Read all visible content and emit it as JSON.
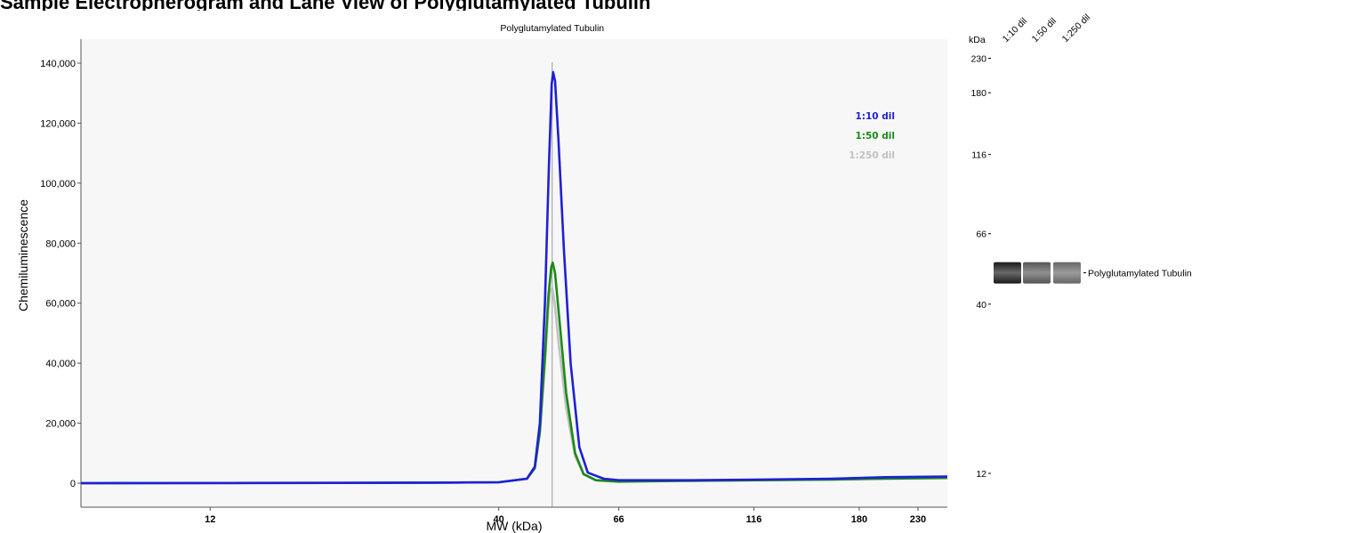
{
  "chart_data": {
    "type": "line",
    "title": "",
    "xlabel": "MW (kDa)",
    "ylabel": "Chemiluminescence",
    "peak_annotation": "Polyglutamylated Tubulin",
    "peak_kda": 50,
    "x_scale": "log",
    "x_range_kda": [
      7,
      260
    ],
    "ylim": [
      -8000,
      148000
    ],
    "x_ticks": [
      {
        "label": "12",
        "value": 12
      },
      {
        "label": "40",
        "value": 40
      },
      {
        "label": "66",
        "value": 66
      },
      {
        "label": "116",
        "value": 116
      },
      {
        "label": "180",
        "value": 180
      },
      {
        "label": "230",
        "value": 230
      }
    ],
    "y_ticks": [
      {
        "label": "0",
        "value": 0
      },
      {
        "label": "20,000",
        "value": 20000
      },
      {
        "label": "40,000",
        "value": 40000
      },
      {
        "label": "60,000",
        "value": 60000
      },
      {
        "label": "80,000",
        "value": 80000
      },
      {
        "label": "100,000",
        "value": 100000
      },
      {
        "label": "120,000",
        "value": 120000
      },
      {
        "label": "140,000",
        "value": 140000
      }
    ],
    "legend_position": "top-right",
    "series": [
      {
        "name": "1:250 dil",
        "color": "#c0c0c0",
        "points": [
          [
            7,
            0
          ],
          [
            20,
            100
          ],
          [
            30,
            200
          ],
          [
            40,
            300
          ],
          [
            45,
            1500
          ],
          [
            46.5,
            5000
          ],
          [
            47.5,
            17000
          ],
          [
            48.5,
            40000
          ],
          [
            49.2,
            58000
          ],
          [
            49.6,
            64000
          ],
          [
            50,
            65000
          ],
          [
            50.5,
            60000
          ],
          [
            51.5,
            45000
          ],
          [
            53,
            25000
          ],
          [
            55,
            9000
          ],
          [
            57,
            3000
          ],
          [
            60,
            1000
          ],
          [
            66,
            600
          ],
          [
            90,
            800
          ],
          [
            116,
            1000
          ],
          [
            160,
            1200
          ],
          [
            200,
            1500
          ],
          [
            260,
            1600
          ]
        ]
      },
      {
        "name": "1:50 dil",
        "color": "#1a8a1a",
        "points": [
          [
            7,
            0
          ],
          [
            20,
            100
          ],
          [
            30,
            200
          ],
          [
            40,
            300
          ],
          [
            45,
            1500
          ],
          [
            46.5,
            5000
          ],
          [
            47.5,
            17000
          ],
          [
            48.5,
            42000
          ],
          [
            49.2,
            62000
          ],
          [
            49.8,
            72000
          ],
          [
            50.1,
            73500
          ],
          [
            50.6,
            70000
          ],
          [
            51.5,
            55000
          ],
          [
            53,
            30000
          ],
          [
            55,
            10000
          ],
          [
            57,
            3000
          ],
          [
            60,
            1000
          ],
          [
            66,
            500
          ],
          [
            90,
            800
          ],
          [
            116,
            1000
          ],
          [
            160,
            1200
          ],
          [
            200,
            1500
          ],
          [
            260,
            1800
          ]
        ]
      },
      {
        "name": "1:10 dil",
        "color": "#1f1fd6",
        "points": [
          [
            7,
            0
          ],
          [
            20,
            100
          ],
          [
            30,
            200
          ],
          [
            40,
            300
          ],
          [
            45,
            1500
          ],
          [
            46.5,
            5500
          ],
          [
            47.5,
            20000
          ],
          [
            48.5,
            60000
          ],
          [
            49.3,
            105000
          ],
          [
            49.9,
            133000
          ],
          [
            50.2,
            137000
          ],
          [
            50.6,
            134000
          ],
          [
            51.3,
            115000
          ],
          [
            52.5,
            78000
          ],
          [
            54,
            40000
          ],
          [
            56,
            12000
          ],
          [
            58,
            3500
          ],
          [
            62,
            1500
          ],
          [
            66,
            1000
          ],
          [
            90,
            1000
          ],
          [
            116,
            1200
          ],
          [
            160,
            1500
          ],
          [
            200,
            2000
          ],
          [
            260,
            2200
          ]
        ]
      }
    ]
  },
  "gel": {
    "unit_label": "kDa",
    "lane_labels": [
      "1:10 dil",
      "1:50 dil",
      "1:250 dil"
    ],
    "markers": [
      {
        "label": "230",
        "value": 230
      },
      {
        "label": "180",
        "value": 180
      },
      {
        "label": "116",
        "value": 116
      },
      {
        "label": "66",
        "value": 66
      },
      {
        "label": "40",
        "value": 40
      },
      {
        "label": "12",
        "value": 12
      }
    ],
    "band_label": "Polyglutamylated Tubulin",
    "band_kda": 50,
    "band_intensity": [
      1.0,
      0.75,
      0.68
    ]
  }
}
